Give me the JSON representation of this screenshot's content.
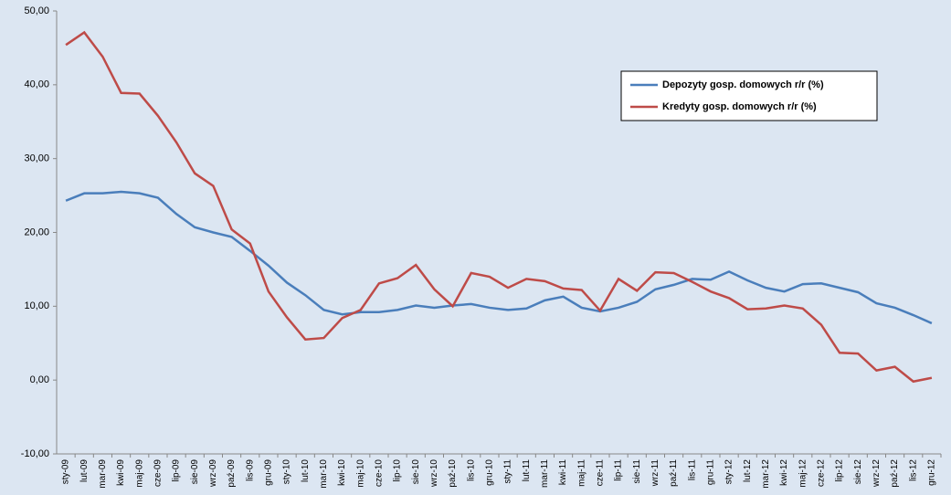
{
  "chart_data": {
    "type": "line",
    "categories": [
      "sty-09",
      "lut-09",
      "mar-09",
      "kwi-09",
      "maj-09",
      "cze-09",
      "lip-09",
      "sie-09",
      "wrz-09",
      "paź-09",
      "lis-09",
      "gru-09",
      "sty-10",
      "lut-10",
      "mar-10",
      "kwi-10",
      "maj-10",
      "cze-10",
      "lip-10",
      "sie-10",
      "wrz-10",
      "paź-10",
      "lis-10",
      "gru-10",
      "sty-11",
      "lut-11",
      "mar-11",
      "kwi-11",
      "maj-11",
      "cze-11",
      "lip-11",
      "sie-11",
      "wrz-11",
      "paź-11",
      "lis-11",
      "gru-11",
      "sty-12",
      "lut-12",
      "mar-12",
      "kwi-12",
      "maj-12",
      "cze-12",
      "lip-12",
      "sie-12",
      "wrz-12",
      "paź-12",
      "lis-12",
      "gru-12"
    ],
    "series": [
      {
        "name": "Depozyty gosp. domowych r/r (%)",
        "color": "#4a7ebb",
        "values": [
          24.3,
          25.3,
          25.3,
          25.5,
          25.3,
          24.7,
          22.5,
          20.7,
          20.0,
          19.4,
          17.5,
          15.5,
          13.2,
          11.5,
          9.5,
          8.9,
          9.2,
          9.2,
          9.5,
          10.1,
          9.8,
          10.1,
          10.3,
          9.8,
          9.5,
          9.7,
          10.8,
          11.3,
          9.8,
          9.3,
          9.8,
          10.6,
          12.3,
          12.9,
          13.7,
          13.6,
          14.7,
          13.5,
          12.5,
          12.0,
          13.0,
          13.1,
          12.5,
          11.9,
          10.4,
          9.8,
          8.8,
          7.7
        ]
      },
      {
        "name": "Kredyty gosp. domowych r/r (%)",
        "color": "#be4b48",
        "values": [
          45.4,
          47.1,
          43.8,
          38.9,
          38.8,
          35.8,
          32.2,
          28.0,
          26.3,
          20.4,
          18.5,
          12.0,
          8.5,
          5.5,
          5.7,
          8.4,
          9.5,
          13.1,
          13.8,
          15.6,
          12.3,
          10.0,
          14.5,
          14.0,
          12.5,
          13.7,
          13.4,
          12.4,
          12.2,
          9.4,
          13.7,
          12.1,
          14.6,
          14.5,
          13.3,
          12.0,
          11.1,
          9.6,
          9.7,
          10.1,
          9.7,
          7.5,
          3.7,
          3.6,
          1.3,
          1.8,
          -0.2,
          0.3
        ]
      }
    ],
    "ylim": [
      -10,
      50
    ],
    "yticks": [
      {
        "value": -10,
        "label": "-10,00"
      },
      {
        "value": 0,
        "label": "0,00"
      },
      {
        "value": 10,
        "label": "10,00"
      },
      {
        "value": 20,
        "label": "20,00"
      },
      {
        "value": 30,
        "label": "30,00"
      },
      {
        "value": 40,
        "label": "40,00"
      },
      {
        "value": 50,
        "label": "50,00"
      }
    ],
    "grid": false
  }
}
